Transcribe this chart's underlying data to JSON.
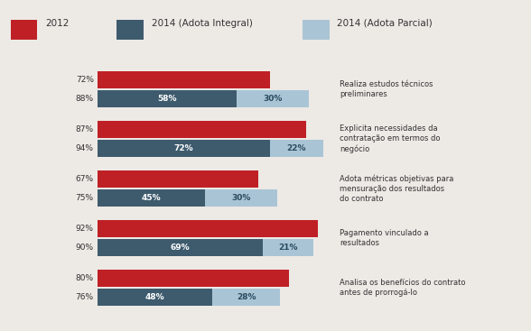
{
  "categories": [
    "Realiza estudos técnicos\npreliminares",
    "Explicita necessidades da\ncontratação em termos do\nnegócio",
    "Adota métricas objetivas para\nmensuração dos resultados\ndo contrato",
    "Pagamento vinculado a\nresultados",
    "Analisa os benefícios do contrato\nantes de prorrogá-lo"
  ],
  "red_values": [
    72,
    87,
    67,
    92,
    80
  ],
  "dark_blue_values": [
    58,
    72,
    45,
    69,
    48
  ],
  "light_blue_values": [
    30,
    22,
    30,
    21,
    28
  ],
  "dark_blue_labels": [
    "58%",
    "72%",
    "45%",
    "69%",
    "48%"
  ],
  "light_blue_labels": [
    "30%",
    "22%",
    "30%",
    "21%",
    "28%"
  ],
  "left_labels_red": [
    "72%",
    "87%",
    "67%",
    "92%",
    "80%"
  ],
  "left_labels_blue": [
    "88%",
    "94%",
    "75%",
    "90%",
    "76%"
  ],
  "red_color": "#bf2025",
  "dark_blue_color": "#3e5b6e",
  "light_blue_color": "#a9c5d5",
  "background_color": "#ede9e5",
  "legend_2012": "2012",
  "legend_integral": "2014 (Adota Integral)",
  "legend_parcial": "2014 (Adota Parcial)",
  "bar_max": 100
}
